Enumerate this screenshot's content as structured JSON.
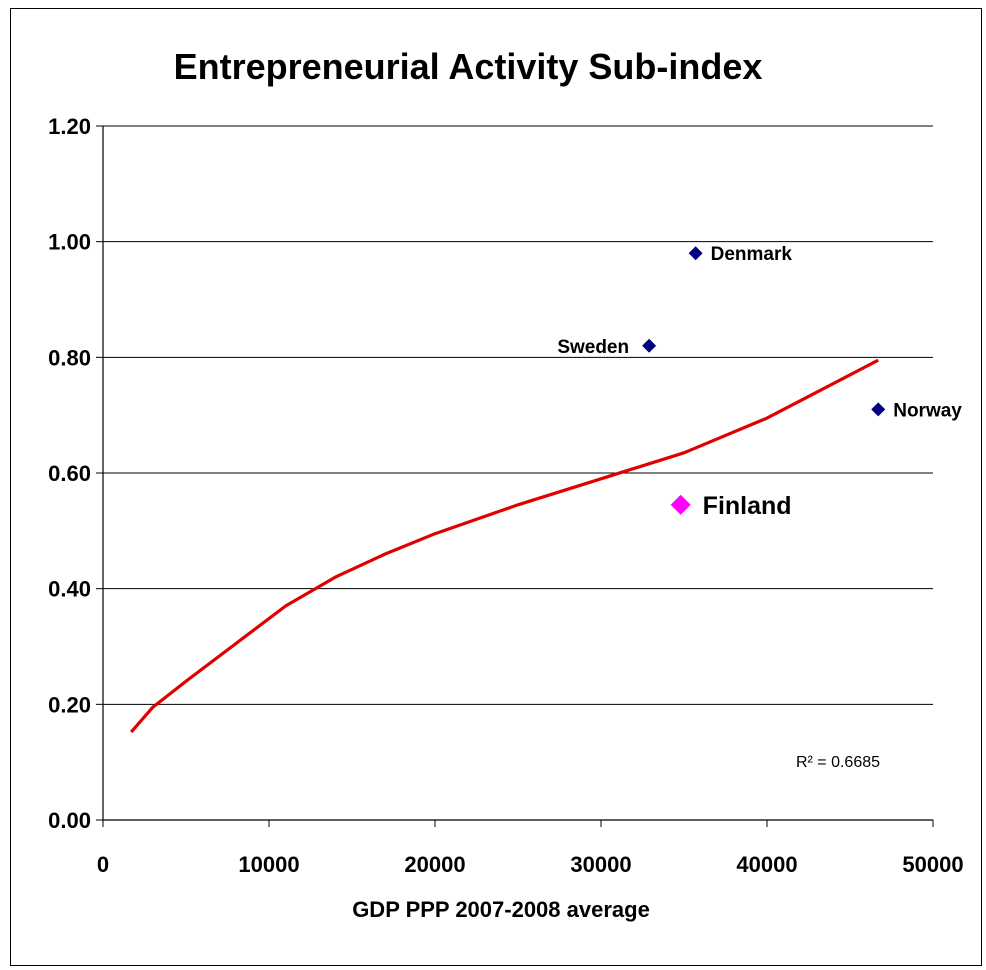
{
  "chart_data": {
    "type": "scatter",
    "title": "Entrepreneurial Activity Sub-index",
    "xlabel": "GDP PPP 2007-2008 average",
    "ylabel": "",
    "xlim": [
      0,
      50000
    ],
    "ylim": [
      0,
      1.2
    ],
    "xticks": [
      0,
      10000,
      20000,
      30000,
      40000,
      50000
    ],
    "xtick_labels": [
      "0",
      "10000",
      "20000",
      "30000",
      "40000",
      "50000"
    ],
    "yticks": [
      0,
      0.2,
      0.4,
      0.6,
      0.8,
      1.0,
      1.2
    ],
    "ytick_labels": [
      "0.00",
      "0.20",
      "0.40",
      "0.60",
      "0.80",
      "1.00",
      "1.20"
    ],
    "grid": "horizontal",
    "points": [
      {
        "label": "Denmark",
        "x": 35700,
        "y": 0.98,
        "color": "#000080",
        "highlight": false,
        "label_side": "right"
      },
      {
        "label": "Sweden",
        "x": 32900,
        "y": 0.82,
        "color": "#000080",
        "highlight": false,
        "label_side": "left"
      },
      {
        "label": "Norway",
        "x": 46700,
        "y": 0.71,
        "color": "#000080",
        "highlight": false,
        "label_side": "right"
      },
      {
        "label": "Finland",
        "x": 34800,
        "y": 0.545,
        "color": "#ff00ff",
        "highlight": true,
        "label_side": "right"
      }
    ],
    "trendline": {
      "type": "power",
      "color": "#e00000",
      "x": [
        1700,
        3000,
        5000,
        8000,
        11000,
        14000,
        17000,
        20000,
        25000,
        30000,
        35000,
        40000,
        46700
      ],
      "y": [
        0.152,
        0.195,
        0.24,
        0.305,
        0.37,
        0.42,
        0.46,
        0.495,
        0.545,
        0.59,
        0.635,
        0.695,
        0.795
      ],
      "r2_label": "R² = 0.6685"
    }
  }
}
